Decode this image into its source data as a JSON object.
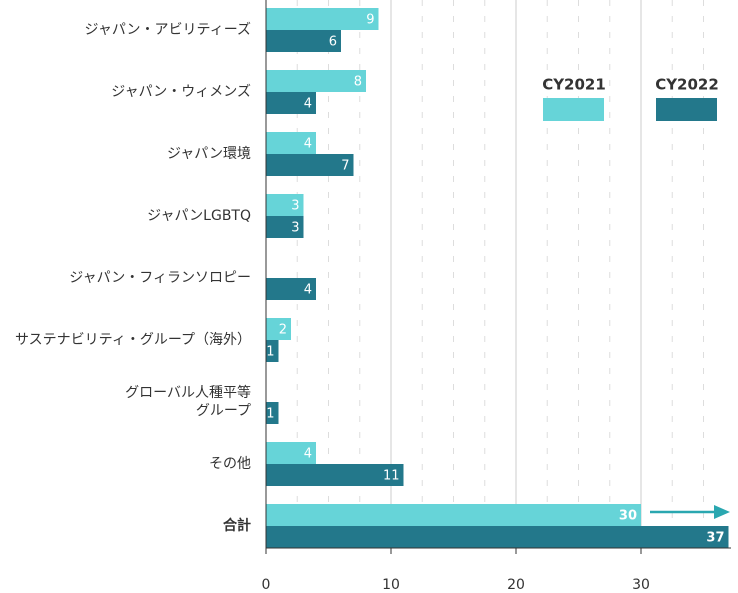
{
  "chart_data": {
    "type": "bar",
    "orientation": "horizontal",
    "categories": [
      "ジャパン・アビリティーズ",
      "ジャパン・ウィメンズ",
      "ジャパン環境",
      "ジャパンLGBTQ",
      "ジャパン・フィランソロピー",
      "サステナビリティ・グループ（海外）",
      "グローバル人種平等\nグループ",
      "その他",
      "合計"
    ],
    "series": [
      {
        "name": "CY2021",
        "color": "#66d4d8",
        "values": [
          9,
          8,
          4,
          3,
          null,
          2,
          null,
          4,
          30
        ]
      },
      {
        "name": "CY2022",
        "color": "#23788b",
        "values": [
          6,
          4,
          7,
          3,
          4,
          1,
          1,
          11,
          37
        ]
      }
    ],
    "xlim": [
      0,
      37.2
    ],
    "xticks": [
      0,
      10,
      20,
      30
    ],
    "minor_xticks": [
      2.5,
      5,
      7.5,
      12.5,
      15,
      17.5,
      22.5,
      25,
      27.5,
      32.5,
      35
    ],
    "grid": true
  }
}
